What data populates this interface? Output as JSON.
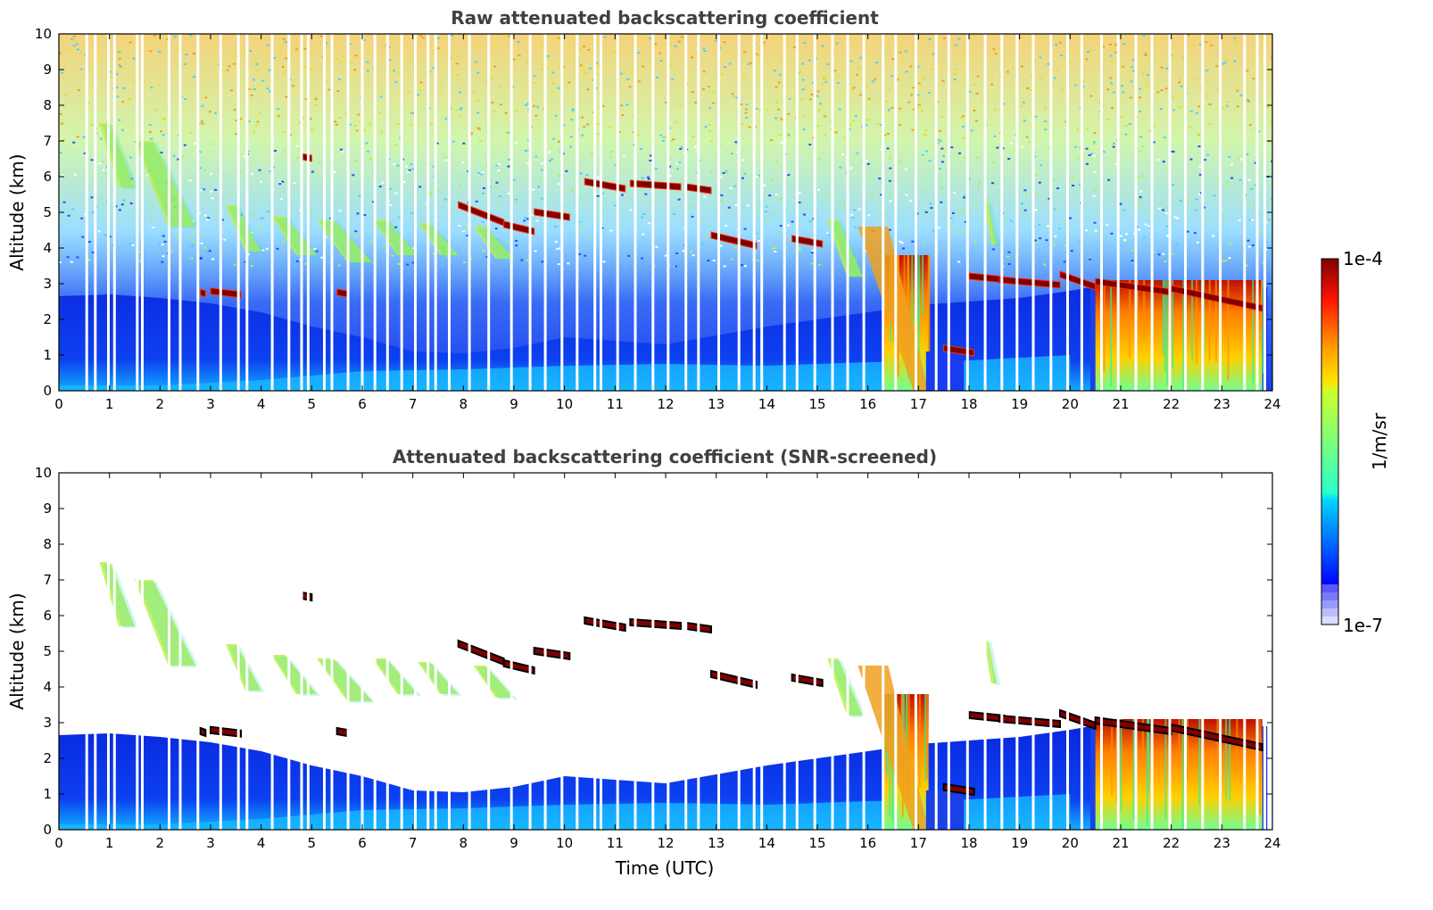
{
  "chart_data": [
    {
      "type": "heatmap",
      "title": "Raw attenuated backscattering coefficient",
      "xlabel": "",
      "ylabel": "Altitude (km)",
      "xlim": [
        0,
        24
      ],
      "ylim": [
        0,
        10
      ],
      "x_ticks": [
        "0",
        "1",
        "2",
        "3",
        "4",
        "5",
        "6",
        "7",
        "8",
        "9",
        "10",
        "11",
        "12",
        "13",
        "14",
        "15",
        "16",
        "17",
        "18",
        "19",
        "20",
        "21",
        "22",
        "23",
        "24"
      ],
      "y_ticks": [
        "0",
        "1",
        "2",
        "3",
        "4",
        "5",
        "6",
        "7",
        "8",
        "9",
        "10"
      ],
      "grid": false,
      "screened": false,
      "data_gaps_x": [
        0.55,
        0.72,
        0.98,
        1.1,
        1.55,
        1.65,
        2.18,
        2.4,
        2.75,
        3.2,
        3.55,
        3.72,
        4.22,
        4.55,
        4.8,
        4.93,
        5.25,
        5.4,
        5.72,
        6.0,
        6.25,
        6.5,
        6.78,
        7.05,
        7.3,
        7.45,
        7.72,
        8.12,
        8.5,
        8.95,
        9.32,
        9.62,
        9.95,
        10.25,
        10.6,
        10.72,
        11.05,
        11.4,
        11.75,
        12.05,
        12.4,
        12.65,
        13.05,
        13.45,
        13.75,
        13.9,
        14.35,
        14.6,
        14.95,
        15.3,
        15.6,
        15.92,
        16.3,
        16.55,
        16.95,
        17.35,
        17.6,
        17.97,
        18.32,
        18.65,
        18.95,
        19.27,
        19.62,
        19.95,
        20.23,
        20.62,
        20.95,
        21.3,
        21.62,
        21.97,
        22.28,
        22.62,
        22.97,
        23.45,
        23.7,
        23.85
      ]
    },
    {
      "type": "heatmap",
      "title": "Attenuated backscattering coefficient (SNR-screened)",
      "xlabel": "Time (UTC)",
      "ylabel": "Altitude (km)",
      "xlim": [
        0,
        24
      ],
      "ylim": [
        0,
        10
      ],
      "x_ticks": [
        "0",
        "1",
        "2",
        "3",
        "4",
        "5",
        "6",
        "7",
        "8",
        "9",
        "10",
        "11",
        "12",
        "13",
        "14",
        "15",
        "16",
        "17",
        "18",
        "19",
        "20",
        "21",
        "22",
        "23",
        "24"
      ],
      "y_ticks": [
        "0",
        "1",
        "2",
        "3",
        "4",
        "5",
        "6",
        "7",
        "8",
        "9",
        "10"
      ],
      "grid": false,
      "screened": true,
      "data_gaps_x": [
        0.55,
        0.72,
        0.98,
        1.1,
        1.55,
        1.65,
        2.18,
        2.4,
        2.75,
        3.2,
        3.55,
        3.72,
        4.22,
        4.55,
        4.8,
        4.93,
        5.25,
        5.4,
        5.72,
        6.0,
        6.25,
        6.5,
        6.78,
        7.05,
        7.3,
        7.45,
        7.72,
        8.12,
        8.5,
        8.95,
        9.32,
        9.62,
        9.95,
        10.25,
        10.6,
        10.72,
        11.05,
        11.4,
        11.75,
        12.05,
        12.4,
        12.65,
        13.05,
        13.45,
        13.75,
        13.9,
        14.35,
        14.6,
        14.95,
        15.3,
        15.6,
        15.92,
        16.3,
        16.55,
        16.95,
        17.35,
        17.6,
        17.97,
        18.32,
        18.65,
        18.95,
        19.27,
        19.62,
        19.95,
        20.23,
        20.62,
        20.95,
        21.3,
        21.62,
        21.97,
        22.28,
        22.62,
        22.97,
        23.45,
        23.7,
        23.85
      ]
    }
  ],
  "features": {
    "clouds_thin": [
      [
        3.0,
        3.6,
        2.88,
        2.78
      ],
      [
        7.9,
        8.8,
        5.3,
        4.8
      ],
      [
        8.8,
        9.4,
        4.75,
        4.55
      ],
      [
        9.4,
        10.1,
        5.1,
        4.95
      ],
      [
        10.4,
        11.2,
        5.95,
        5.75
      ],
      [
        11.3,
        12.3,
        5.9,
        5.8
      ],
      [
        12.4,
        12.9,
        5.8,
        5.7
      ],
      [
        12.9,
        13.8,
        4.45,
        4.15
      ],
      [
        14.5,
        15.1,
        4.35,
        4.2
      ],
      [
        17.5,
        18.1,
        1.28,
        1.15
      ],
      [
        18.0,
        18.7,
        3.3,
        3.2
      ],
      [
        18.6,
        19.8,
        3.2,
        3.05
      ],
      [
        19.8,
        20.5,
        3.35,
        3.0
      ],
      [
        20.5,
        22.0,
        3.15,
        2.85
      ],
      [
        22.0,
        23.8,
        2.95,
        2.4
      ],
      [
        4.8,
        5.0,
        6.65,
        6.6
      ],
      [
        2.8,
        2.9,
        2.85,
        2.8
      ],
      [
        5.5,
        5.7,
        2.85,
        2.8
      ]
    ],
    "virga_streaks": [
      [
        0.8,
        1.5,
        7.5,
        5.7
      ],
      [
        1.5,
        2.7,
        7.0,
        4.6
      ],
      [
        3.3,
        4.0,
        5.2,
        3.9
      ],
      [
        4.2,
        5.1,
        4.9,
        3.8
      ],
      [
        5.1,
        6.2,
        4.8,
        3.6
      ],
      [
        6.2,
        7.1,
        4.8,
        3.8
      ],
      [
        7.1,
        7.9,
        4.7,
        3.8
      ],
      [
        8.2,
        9.0,
        4.6,
        3.7
      ],
      [
        15.2,
        15.9,
        4.8,
        3.2
      ],
      [
        18.3,
        18.55,
        5.3,
        4.1
      ]
    ],
    "boundary_layer_top": [
      [
        0,
        2.65
      ],
      [
        1,
        2.7
      ],
      [
        2,
        2.6
      ],
      [
        3,
        2.45
      ],
      [
        4,
        2.2
      ],
      [
        5,
        1.8
      ],
      [
        6,
        1.5
      ],
      [
        7,
        1.1
      ],
      [
        8,
        1.05
      ],
      [
        9,
        1.2
      ],
      [
        10,
        1.5
      ],
      [
        11,
        1.4
      ],
      [
        12,
        1.3
      ],
      [
        13,
        1.55
      ],
      [
        14,
        1.8
      ],
      [
        15,
        2.0
      ],
      [
        16,
        2.2
      ],
      [
        17,
        2.4
      ],
      [
        18,
        2.5
      ],
      [
        19,
        2.6
      ],
      [
        20,
        2.8
      ],
      [
        20.4,
        2.9
      ]
    ],
    "boundary_layer_low": [
      [
        0,
        0.15
      ],
      [
        2,
        0.15
      ],
      [
        4,
        0.3
      ],
      [
        6,
        0.55
      ],
      [
        8,
        0.6
      ],
      [
        10,
        0.7
      ],
      [
        12,
        0.75
      ],
      [
        14,
        0.7
      ],
      [
        16,
        0.8
      ],
      [
        18,
        0.85
      ],
      [
        20,
        1.0
      ]
    ],
    "precip_zones": [
      [
        16.3,
        17.2,
        3.8,
        0
      ],
      [
        20.5,
        23.8,
        3.1,
        0
      ]
    ]
  },
  "colorbar": {
    "label": "1/m/sr",
    "max_label": "1e-4",
    "min_label": "1e-7",
    "colormap": "jet",
    "scale": "log"
  },
  "colors": {
    "title": "#404040",
    "gap": "#ffffff",
    "cloud_core": "#800000",
    "black_edge": "#000000"
  }
}
